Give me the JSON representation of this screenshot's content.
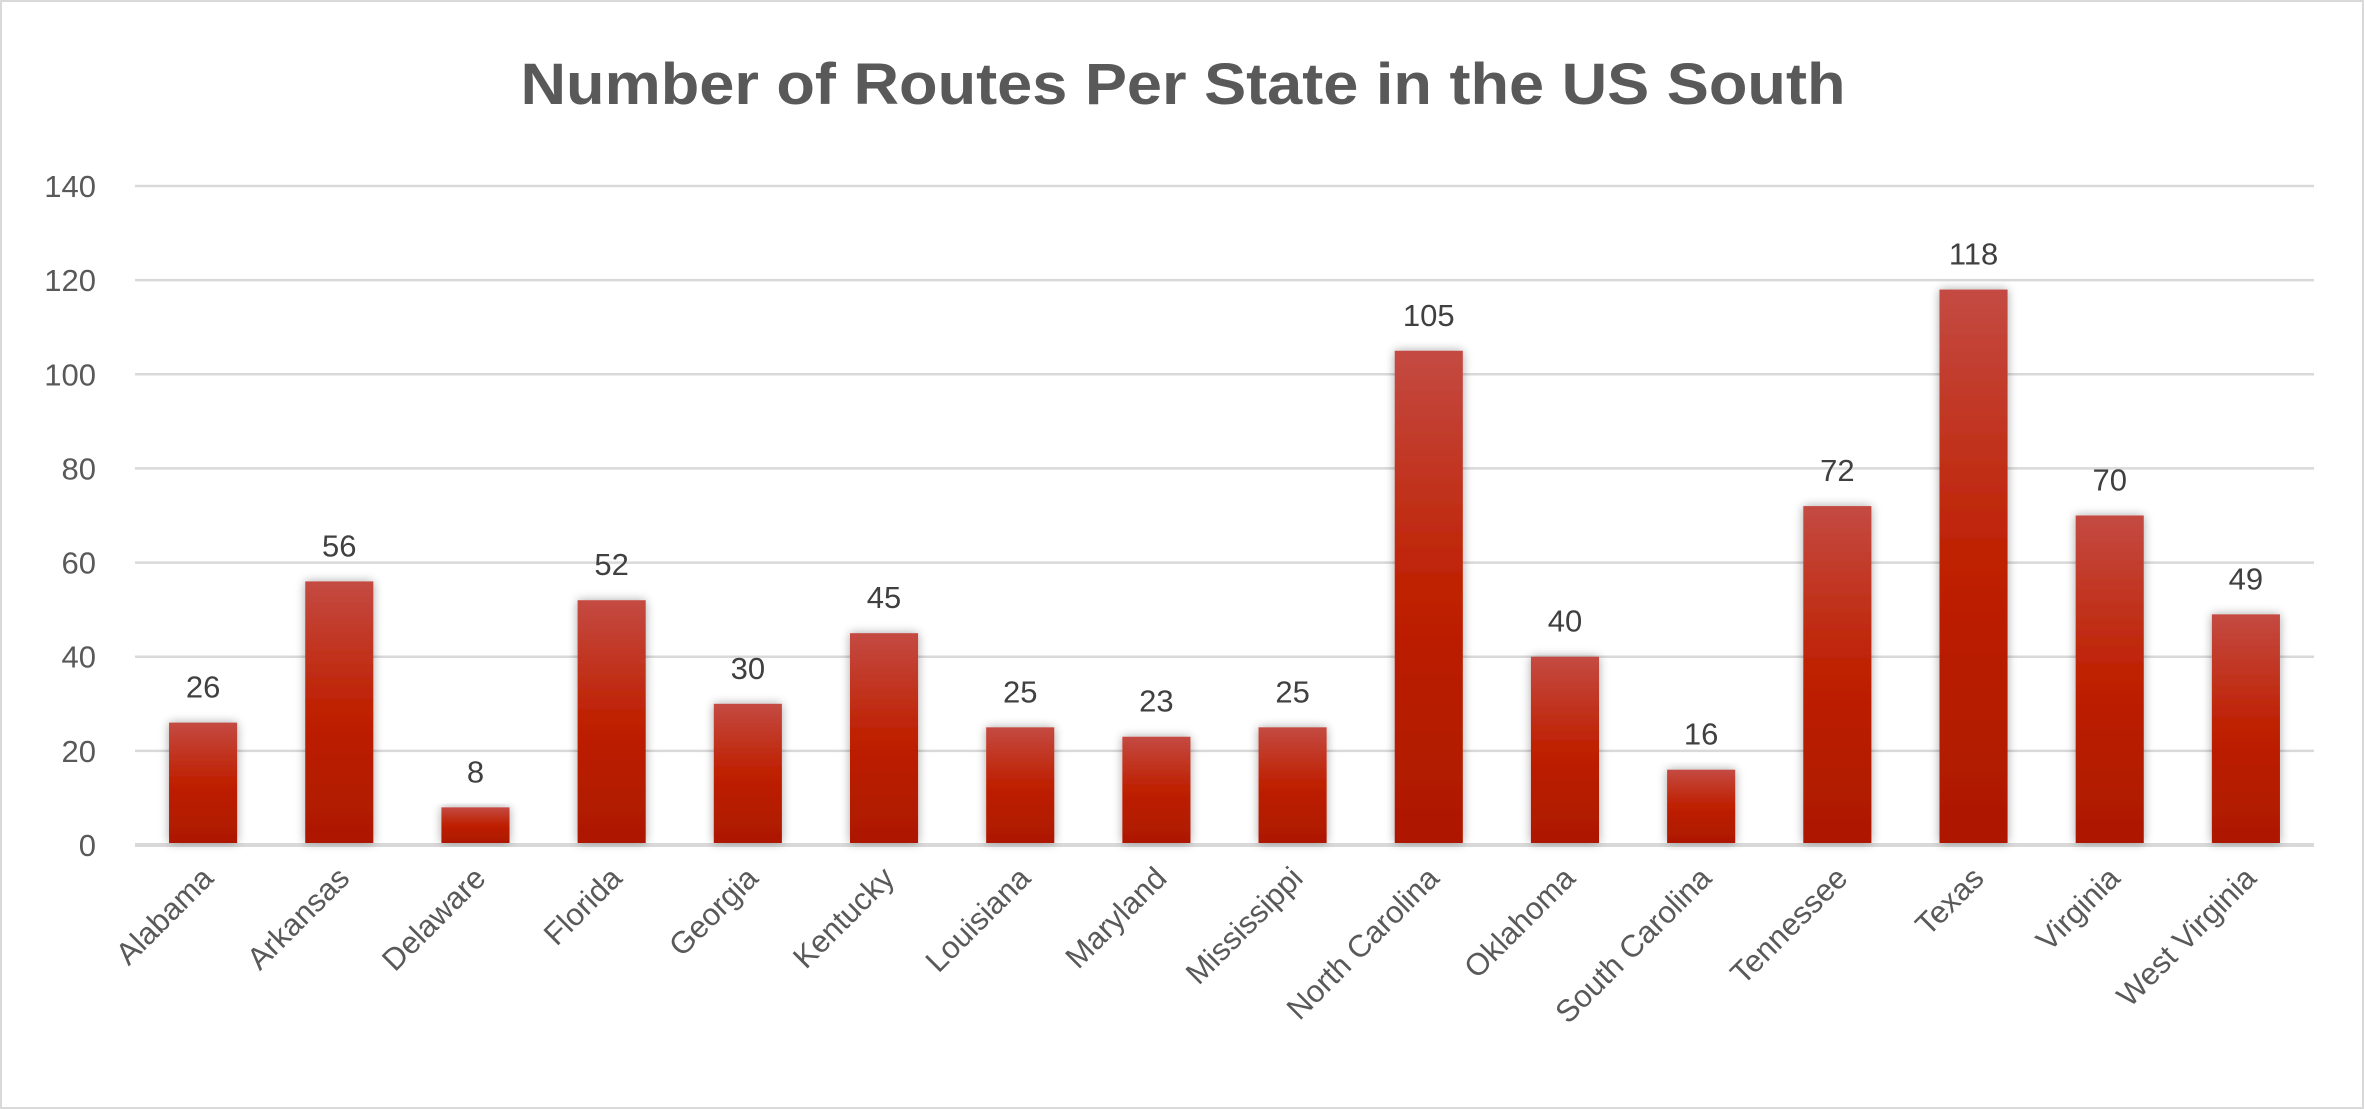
{
  "chart_data": {
    "type": "bar",
    "title": "Number of Routes Per State in the US South",
    "xlabel": "",
    "ylabel": "",
    "categories": [
      "Alabama",
      "Arkansas",
      "Delaware",
      "Florida",
      "Georgia",
      "Kentucky",
      "Louisiana",
      "Maryland",
      "Mississippi",
      "North Carolina",
      "Oklahoma",
      "South Carolina",
      "Tennessee",
      "Texas",
      "Virginia",
      "West Virginia"
    ],
    "values": [
      26,
      56,
      8,
      52,
      30,
      45,
      25,
      23,
      25,
      105,
      40,
      16,
      72,
      118,
      70,
      49
    ],
    "ylim": [
      0,
      140
    ],
    "yticks": [
      0,
      20,
      40,
      60,
      80,
      100,
      120,
      140
    ],
    "grid": true,
    "legend": "none",
    "data_labels": true,
    "colors": {
      "bar_top": "#c44a42",
      "bar_mid": "#be2000",
      "bar_bottom": "#ad1800",
      "grid": "#d9d9d9",
      "text": "#595959",
      "title": "#595959"
    }
  }
}
